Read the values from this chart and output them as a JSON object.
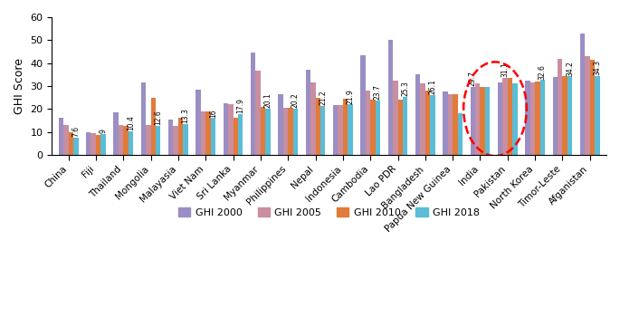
{
  "categories": [
    "China",
    "Fiji",
    "Thailand",
    "Mongolia",
    "Malayasia",
    "Viet Nam",
    "Sri Lanka",
    "Myanmar",
    "Philippines",
    "Nepal",
    "Indonesia",
    "Cambodia",
    "Lao PDR",
    "Bangladesh",
    "Papua New Guinea",
    "India",
    "Pakistan",
    "North Korea",
    "Timor-Leste",
    "Afganistan"
  ],
  "ghi2000": [
    16,
    10,
    18.5,
    31.5,
    15.5,
    28.5,
    22.5,
    44.5,
    26.5,
    37,
    21.5,
    43.5,
    50,
    35,
    27.5,
    29.7,
    31.5,
    32.5,
    34,
    53
  ],
  "ghi2005": [
    13,
    9.5,
    13,
    13,
    12.8,
    19,
    22,
    36.5,
    20.5,
    31.5,
    21.5,
    28,
    32.5,
    31,
    26.5,
    31.1,
    33.5,
    31.5,
    42,
    43
  ],
  "ghi2010": [
    10,
    8.5,
    12.5,
    25,
    16,
    19,
    16,
    21,
    20.5,
    25,
    24.5,
    24,
    24,
    28,
    26.5,
    29.7,
    33.5,
    32,
    34.2,
    41.5
  ],
  "ghi2018": [
    7.6,
    9,
    10.4,
    12.6,
    13.3,
    16,
    17.9,
    20.1,
    20.2,
    21.2,
    21.9,
    23.7,
    25.3,
    26.1,
    18,
    29.7,
    31.1,
    32.6,
    34.2,
    34.3
  ],
  "label_bar": [
    3,
    3,
    3,
    3,
    3,
    3,
    3,
    3,
    3,
    3,
    3,
    3,
    3,
    3,
    3,
    0,
    1,
    3,
    3,
    3
  ],
  "labels_vals": [
    "7.6",
    "9",
    "10.4",
    "12.6",
    "13.3",
    "16",
    "17.9",
    "20.1",
    "20.2",
    "21.2",
    "21.9",
    "23.7",
    "25.3",
    "26.1",
    "",
    "29.7",
    "31.1",
    "32.6",
    "34.2",
    "34.3"
  ],
  "colors": [
    "#9b8ec4",
    "#c98ea0",
    "#e07b3a",
    "#5bbcd6"
  ],
  "ylabel": "GHI Score",
  "ylim": [
    0,
    60
  ],
  "yticks": [
    0,
    10,
    20,
    30,
    40,
    50,
    60
  ],
  "legend_labels": [
    "GHI 2000",
    "GHI 2005",
    "GHI 2010",
    "GHI 2018"
  ],
  "india_idx": 15,
  "pakistan_idx": 16
}
